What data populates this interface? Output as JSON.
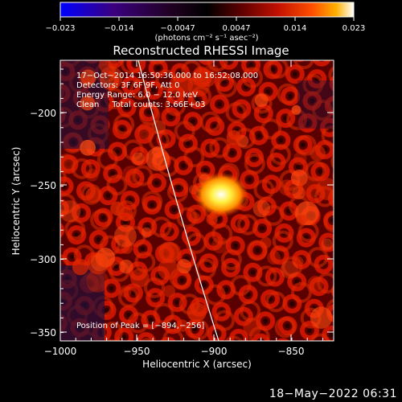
{
  "colorbar": {
    "ticks": [
      "−0.023",
      "−0.014",
      "−0.0047",
      "0.0047",
      "0.014",
      "0.023"
    ],
    "units": "(photons cm⁻² s⁻¹ asec⁻²)",
    "colors": [
      "#0000ff",
      "#3a0080",
      "#200020",
      "#000000",
      "#600000",
      "#c01000",
      "#ff5000",
      "#ffb000",
      "#ffffff"
    ]
  },
  "plot": {
    "title": "Reconstructed RHESSI Image",
    "xlabel": "Heliocentric X (arcsec)",
    "ylabel": "Heliocentric Y (arcsec)",
    "xticks": [
      "−1000",
      "−950",
      "−900",
      "−850"
    ],
    "yticks": [
      "−200",
      "−250",
      "−300",
      "−350"
    ],
    "info": [
      "17−Oct−2014 16:50:36.000 to 16:52:08.000",
      "Detectors: 3F 6F 9F, Att 0",
      "Energy Range: 6.0 − 12.0 keV",
      "Clean     Total counts: 3.66E+03"
    ],
    "peak_label": "Position of Peak = [−894,−256]"
  },
  "footer": {
    "timestamp": "18−May−2022 06:31"
  }
}
